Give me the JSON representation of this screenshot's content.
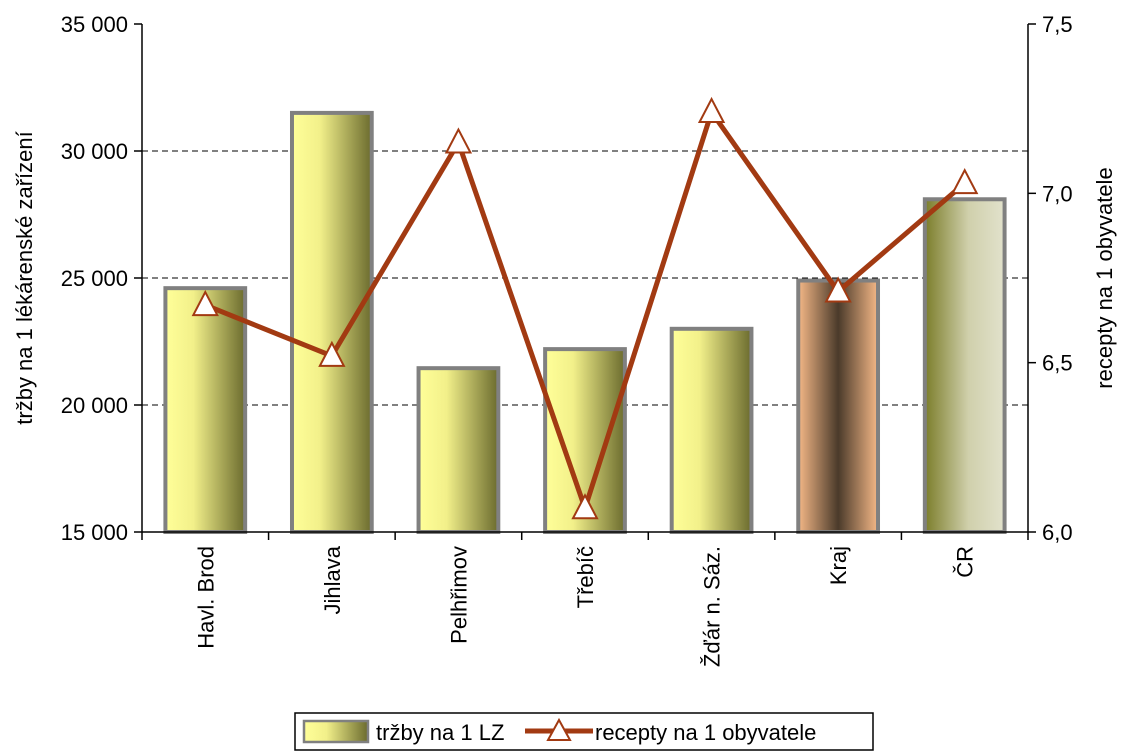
{
  "chart_data": {
    "type": "bar+line",
    "categories": [
      "Havl. Brod",
      "Jihlava",
      "Pelhřimov",
      "Třebíč",
      "Žďár n. Sáz.",
      "Kraj",
      "ČR"
    ],
    "series": [
      {
        "name": "tržby na 1 LZ",
        "type": "bar",
        "axis": "left",
        "values": [
          24600,
          31500,
          21450,
          22200,
          23000,
          24900,
          28100
        ]
      },
      {
        "name": "recepty na 1 obyvatele",
        "type": "line",
        "axis": "right",
        "marker": "triangle",
        "values": [
          6.67,
          6.52,
          7.15,
          6.07,
          7.24,
          6.71,
          7.03
        ]
      }
    ],
    "y_left": {
      "label": "tržby na 1 lékárenské zařízení",
      "range": [
        15000,
        35000
      ],
      "ticks": [
        15000,
        20000,
        25000,
        30000,
        35000
      ],
      "tick_labels": [
        "15 000",
        "20 000",
        "25 000",
        "30 000",
        "35 000"
      ]
    },
    "y_right": {
      "label": "recepty na 1 obyvatele",
      "range": [
        6.0,
        7.5
      ],
      "ticks": [
        6.0,
        6.5,
        7.0,
        7.5
      ],
      "tick_labels": [
        "6,0",
        "6,5",
        "7,0",
        "7,5"
      ]
    },
    "grid": "dashed horizontal",
    "legend_position": "bottom",
    "colors": {
      "bar_light": "#ffff99",
      "bar_dark": "#6b6b2e",
      "bar_kraj_light": "#f5b887",
      "bar_kraj_dark": "#4a3a2a",
      "bar_cr_light": "#e2e2cc",
      "bar_cr_dark": "#7b7d2a",
      "bar_border": "#808080",
      "line": "#a23a12"
    }
  }
}
